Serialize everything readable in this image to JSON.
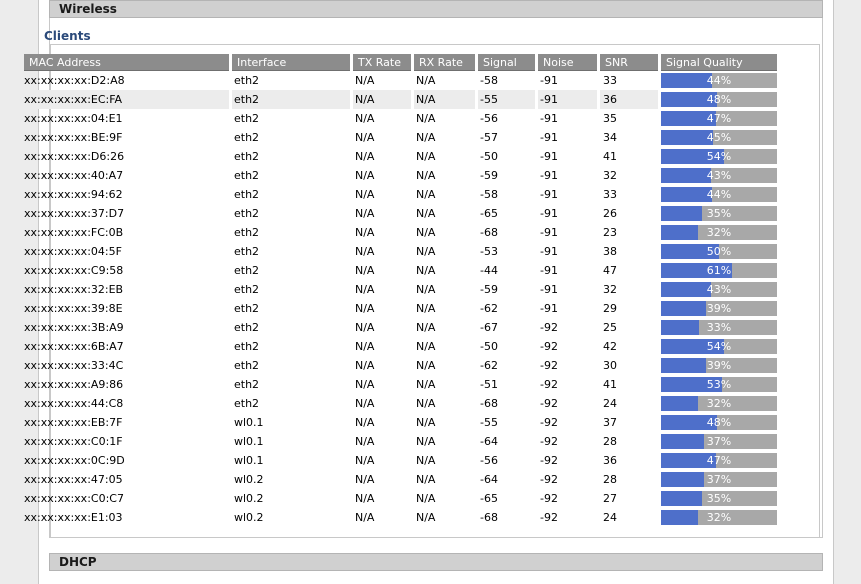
{
  "sections": {
    "wireless_title": "Wireless",
    "clients_title": "Clients",
    "dhcp_title": "DHCP"
  },
  "columns": [
    "MAC Address",
    "Interface",
    "TX Rate",
    "RX Rate",
    "Signal",
    "Noise",
    "SNR",
    "Signal Quality"
  ],
  "clients": [
    {
      "mac": "xx:xx:xx:xx:D2:A8",
      "iface": "eth2",
      "tx": "N/A",
      "rx": "N/A",
      "signal": "-58",
      "noise": "-91",
      "snr": "33",
      "quality": "44%",
      "q": 44
    },
    {
      "mac": "xx:xx:xx:xx:EC:FA",
      "iface": "eth2",
      "tx": "N/A",
      "rx": "N/A",
      "signal": "-55",
      "noise": "-91",
      "snr": "36",
      "quality": "48%",
      "q": 48
    },
    {
      "mac": "xx:xx:xx:xx:04:E1",
      "iface": "eth2",
      "tx": "N/A",
      "rx": "N/A",
      "signal": "-56",
      "noise": "-91",
      "snr": "35",
      "quality": "47%",
      "q": 47
    },
    {
      "mac": "xx:xx:xx:xx:BE:9F",
      "iface": "eth2",
      "tx": "N/A",
      "rx": "N/A",
      "signal": "-57",
      "noise": "-91",
      "snr": "34",
      "quality": "45%",
      "q": 45
    },
    {
      "mac": "xx:xx:xx:xx:D6:26",
      "iface": "eth2",
      "tx": "N/A",
      "rx": "N/A",
      "signal": "-50",
      "noise": "-91",
      "snr": "41",
      "quality": "54%",
      "q": 54
    },
    {
      "mac": "xx:xx:xx:xx:40:A7",
      "iface": "eth2",
      "tx": "N/A",
      "rx": "N/A",
      "signal": "-59",
      "noise": "-91",
      "snr": "32",
      "quality": "43%",
      "q": 43
    },
    {
      "mac": "xx:xx:xx:xx:94:62",
      "iface": "eth2",
      "tx": "N/A",
      "rx": "N/A",
      "signal": "-58",
      "noise": "-91",
      "snr": "33",
      "quality": "44%",
      "q": 44
    },
    {
      "mac": "xx:xx:xx:xx:37:D7",
      "iface": "eth2",
      "tx": "N/A",
      "rx": "N/A",
      "signal": "-65",
      "noise": "-91",
      "snr": "26",
      "quality": "35%",
      "q": 35
    },
    {
      "mac": "xx:xx:xx:xx:FC:0B",
      "iface": "eth2",
      "tx": "N/A",
      "rx": "N/A",
      "signal": "-68",
      "noise": "-91",
      "snr": "23",
      "quality": "32%",
      "q": 32
    },
    {
      "mac": "xx:xx:xx:xx:04:5F",
      "iface": "eth2",
      "tx": "N/A",
      "rx": "N/A",
      "signal": "-53",
      "noise": "-91",
      "snr": "38",
      "quality": "50%",
      "q": 50
    },
    {
      "mac": "xx:xx:xx:xx:C9:58",
      "iface": "eth2",
      "tx": "N/A",
      "rx": "N/A",
      "signal": "-44",
      "noise": "-91",
      "snr": "47",
      "quality": "61%",
      "q": 61
    },
    {
      "mac": "xx:xx:xx:xx:32:EB",
      "iface": "eth2",
      "tx": "N/A",
      "rx": "N/A",
      "signal": "-59",
      "noise": "-91",
      "snr": "32",
      "quality": "43%",
      "q": 43
    },
    {
      "mac": "xx:xx:xx:xx:39:8E",
      "iface": "eth2",
      "tx": "N/A",
      "rx": "N/A",
      "signal": "-62",
      "noise": "-91",
      "snr": "29",
      "quality": "39%",
      "q": 39
    },
    {
      "mac": "xx:xx:xx:xx:3B:A9",
      "iface": "eth2",
      "tx": "N/A",
      "rx": "N/A",
      "signal": "-67",
      "noise": "-92",
      "snr": "25",
      "quality": "33%",
      "q": 33
    },
    {
      "mac": "xx:xx:xx:xx:6B:A7",
      "iface": "eth2",
      "tx": "N/A",
      "rx": "N/A",
      "signal": "-50",
      "noise": "-92",
      "snr": "42",
      "quality": "54%",
      "q": 54
    },
    {
      "mac": "xx:xx:xx:xx:33:4C",
      "iface": "eth2",
      "tx": "N/A",
      "rx": "N/A",
      "signal": "-62",
      "noise": "-92",
      "snr": "30",
      "quality": "39%",
      "q": 39
    },
    {
      "mac": "xx:xx:xx:xx:A9:86",
      "iface": "eth2",
      "tx": "N/A",
      "rx": "N/A",
      "signal": "-51",
      "noise": "-92",
      "snr": "41",
      "quality": "53%",
      "q": 53
    },
    {
      "mac": "xx:xx:xx:xx:44:C8",
      "iface": "eth2",
      "tx": "N/A",
      "rx": "N/A",
      "signal": "-68",
      "noise": "-92",
      "snr": "24",
      "quality": "32%",
      "q": 32
    },
    {
      "mac": "xx:xx:xx:xx:EB:7F",
      "iface": "wl0.1",
      "tx": "N/A",
      "rx": "N/A",
      "signal": "-55",
      "noise": "-92",
      "snr": "37",
      "quality": "48%",
      "q": 48
    },
    {
      "mac": "xx:xx:xx:xx:C0:1F",
      "iface": "wl0.1",
      "tx": "N/A",
      "rx": "N/A",
      "signal": "-64",
      "noise": "-92",
      "snr": "28",
      "quality": "37%",
      "q": 37
    },
    {
      "mac": "xx:xx:xx:xx:0C:9D",
      "iface": "wl0.1",
      "tx": "N/A",
      "rx": "N/A",
      "signal": "-56",
      "noise": "-92",
      "snr": "36",
      "quality": "47%",
      "q": 47
    },
    {
      "mac": "xx:xx:xx:xx:47:05",
      "iface": "wl0.2",
      "tx": "N/A",
      "rx": "N/A",
      "signal": "-64",
      "noise": "-92",
      "snr": "28",
      "quality": "37%",
      "q": 37
    },
    {
      "mac": "xx:xx:xx:xx:C0:C7",
      "iface": "wl0.2",
      "tx": "N/A",
      "rx": "N/A",
      "signal": "-65",
      "noise": "-92",
      "snr": "27",
      "quality": "35%",
      "q": 35
    },
    {
      "mac": "xx:xx:xx:xx:E1:03",
      "iface": "wl0.2",
      "tx": "N/A",
      "rx": "N/A",
      "signal": "-68",
      "noise": "-92",
      "snr": "24",
      "quality": "32%",
      "q": 32
    }
  ],
  "colors": {
    "quality_fill": "#4e6fca",
    "quality_track": "#a8a8a8",
    "header_bg": "#8c8c8c",
    "highlight_row": "#ececec"
  }
}
